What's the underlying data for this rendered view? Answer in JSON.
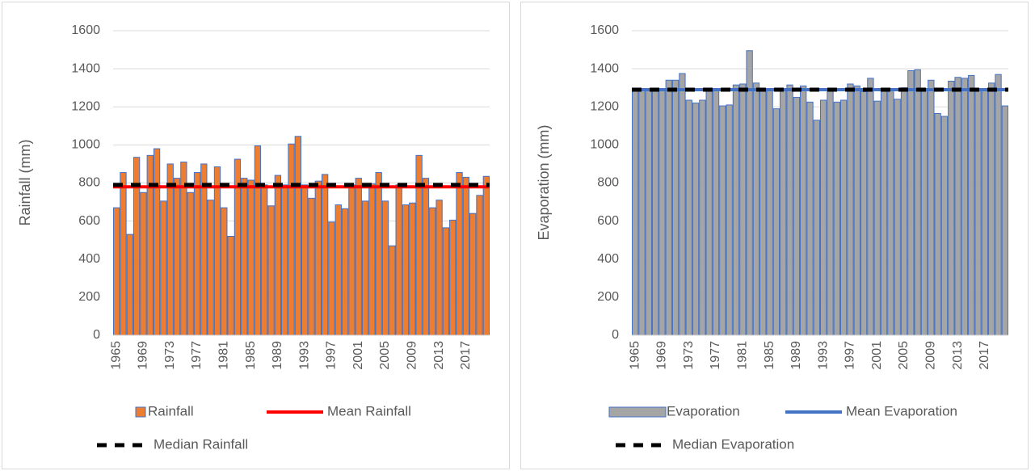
{
  "chart_data": [
    {
      "type": "bar",
      "y_label": "Rainfall (mm)",
      "categories": [
        "1965",
        null,
        null,
        null,
        "1969",
        null,
        null,
        null,
        "1973",
        null,
        null,
        null,
        "1977",
        null,
        null,
        null,
        "1981",
        null,
        null,
        null,
        "1985",
        null,
        null,
        null,
        "1989",
        null,
        null,
        null,
        "1993",
        null,
        null,
        null,
        "1997",
        null,
        null,
        null,
        "2001",
        null,
        null,
        null,
        "2005",
        null,
        null,
        null,
        "2009",
        null,
        null,
        null,
        "2013",
        null,
        null,
        null,
        "2017",
        null,
        null,
        null
      ],
      "series": [
        {
          "name": "Rainfall",
          "color": "#ed7d31",
          "edgecolor": "#4472c4",
          "values": [
            670,
            855,
            530,
            935,
            750,
            945,
            980,
            705,
            900,
            825,
            910,
            750,
            855,
            900,
            710,
            885,
            670,
            520,
            925,
            825,
            815,
            995,
            790,
            680,
            840,
            790,
            1005,
            1045,
            790,
            720,
            810,
            845,
            595,
            685,
            665,
            790,
            825,
            705,
            795,
            855,
            705,
            470,
            790,
            685,
            695,
            945,
            825,
            670,
            710,
            565,
            605,
            855,
            830,
            640,
            735,
            835
          ]
        },
        {
          "name": "Mean Rainfall",
          "type": "hline",
          "color": "#ff0000",
          "value": 780
        },
        {
          "name": "Median Rainfall",
          "type": "hline",
          "color": "#000000",
          "dashed": true,
          "value": 790
        }
      ],
      "ylim": [
        0,
        1600
      ],
      "yticks": [
        0,
        200,
        400,
        600,
        800,
        1000,
        1200,
        1400,
        1600
      ],
      "grid": true
    },
    {
      "type": "bar",
      "y_label": "Evaporation (mm)",
      "categories": [
        "1965",
        null,
        null,
        null,
        "1969",
        null,
        null,
        null,
        "1973",
        null,
        null,
        null,
        "1977",
        null,
        null,
        null,
        "1981",
        null,
        null,
        null,
        "1985",
        null,
        null,
        null,
        "1989",
        null,
        null,
        null,
        "1993",
        null,
        null,
        null,
        "1997",
        null,
        null,
        null,
        "2001",
        null,
        null,
        null,
        "2005",
        null,
        null,
        null,
        "2009",
        null,
        null,
        null,
        "2013",
        null,
        null,
        null,
        "2017",
        null,
        null,
        null
      ],
      "series": [
        {
          "name": "Evaporation",
          "color": "#a5a5a5",
          "edgecolor": "#4472c4",
          "values": [
            1285,
            1290,
            1290,
            1290,
            1285,
            1340,
            1340,
            1375,
            1235,
            1220,
            1235,
            1290,
            1290,
            1205,
            1210,
            1315,
            1320,
            1495,
            1325,
            1290,
            1285,
            1190,
            1285,
            1315,
            1250,
            1310,
            1225,
            1130,
            1235,
            1290,
            1225,
            1235,
            1320,
            1310,
            1280,
            1350,
            1230,
            1295,
            1295,
            1240,
            1300,
            1390,
            1395,
            1290,
            1340,
            1165,
            1150,
            1335,
            1355,
            1350,
            1365,
            1290,
            1290,
            1325,
            1370,
            1205
          ]
        },
        {
          "name": "Mean Evaporation",
          "type": "hline",
          "color": "#4472c4",
          "value": 1290
        },
        {
          "name": "Median Evaporation",
          "type": "hline",
          "color": "#000000",
          "dashed": true,
          "value": 1290
        }
      ],
      "ylim": [
        0,
        1600
      ],
      "yticks": [
        0,
        200,
        400,
        600,
        800,
        1000,
        1200,
        1400,
        1600
      ],
      "grid": true
    }
  ]
}
